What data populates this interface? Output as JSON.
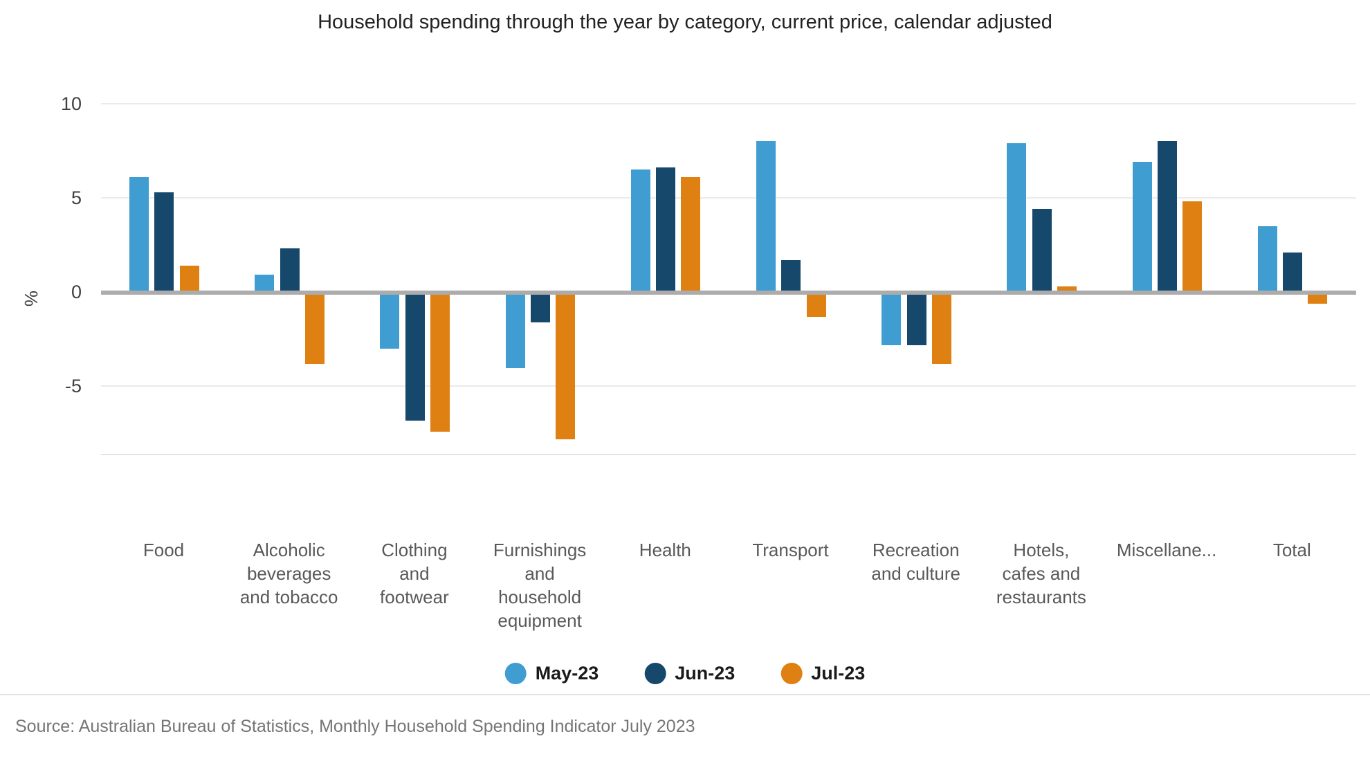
{
  "chart_data": {
    "type": "bar",
    "title": "Household spending through the year by category, current price, calendar adjusted",
    "ylabel": "%",
    "y_ticks": [
      10,
      5,
      0,
      -5
    ],
    "ylim": [
      -8.6,
      11.8
    ],
    "grid": "horizontal-light-gray, emphasized zero line",
    "legend_position": "bottom-center",
    "categories": [
      "Food",
      "Alcoholic\nbeverages\nand tobacco",
      "Clothing\nand\nfootwear",
      "Furnishings\nand\nhousehold\nequipment",
      "Health",
      "Transport",
      "Recreation\nand culture",
      "Hotels,\ncafes and\nrestaurants",
      "Miscellane...",
      "Total"
    ],
    "series": [
      {
        "name": "May-23",
        "color": "#3F9DD1",
        "values": [
          6.1,
          0.9,
          -3.1,
          -4.1,
          6.5,
          8.0,
          -2.9,
          7.9,
          6.9,
          3.5
        ]
      },
      {
        "name": "Jun-23",
        "color": "#16486C",
        "values": [
          5.3,
          2.3,
          -6.9,
          -1.7,
          6.6,
          1.7,
          -2.9,
          4.4,
          8.0,
          2.1
        ]
      },
      {
        "name": "Jul-23",
        "color": "#DE8012",
        "values": [
          1.4,
          -3.9,
          -7.5,
          -7.9,
          6.1,
          -1.4,
          -3.9,
          0.3,
          4.8,
          -0.7
        ]
      }
    ]
  },
  "axis_colors": {
    "gridline": "#ebebeb",
    "zero_line": "#acacac",
    "bottom_line": "#dde4ea",
    "tick_text": "#404040",
    "category_text": "#595959"
  },
  "source_note": "Source: Australian Bureau of Statistics, Monthly Household Spending Indicator July 2023"
}
